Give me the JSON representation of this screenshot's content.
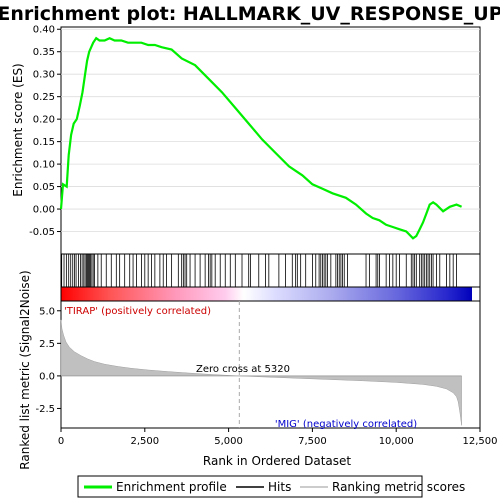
{
  "chart_data": {
    "type": "line",
    "title": "Enrichment plot: HALLMARK_UV_RESPONSE_UP",
    "top_panel": {
      "ylabel": "Enrichment score (ES)",
      "ylim": [
        -0.1,
        0.4
      ],
      "yticks": [
        "0.40",
        "0.35",
        "0.30",
        "0.25",
        "0.20",
        "0.15",
        "0.10",
        "0.05",
        "0.00",
        "-0.05"
      ],
      "ytick_values": [
        0.4,
        0.35,
        0.3,
        0.25,
        0.2,
        0.15,
        0.1,
        0.05,
        0.0,
        -0.05
      ],
      "series": [
        {
          "name": "Enrichment profile",
          "color": "#00ff00",
          "x": [
            0,
            60,
            170,
            230,
            300,
            380,
            470,
            560,
            640,
            720,
            780,
            840,
            900,
            960,
            1050,
            1150,
            1300,
            1450,
            1600,
            1800,
            2000,
            2200,
            2400,
            2600,
            2800,
            3000,
            3300,
            3600,
            4000,
            4400,
            4800,
            5200,
            5600,
            6000,
            6400,
            6800,
            7000,
            7200,
            7500,
            7800,
            8100,
            8300,
            8500,
            8800,
            9100,
            9300,
            9500,
            9700,
            9900,
            10100,
            10300,
            10500,
            10600,
            10700,
            10800,
            10900,
            11000,
            11100,
            11200,
            11400,
            11600,
            11800,
            11950
          ],
          "y": [
            0.0,
            0.055,
            0.05,
            0.12,
            0.165,
            0.19,
            0.2,
            0.23,
            0.26,
            0.3,
            0.33,
            0.35,
            0.36,
            0.37,
            0.38,
            0.375,
            0.375,
            0.38,
            0.375,
            0.375,
            0.37,
            0.37,
            0.37,
            0.365,
            0.365,
            0.36,
            0.355,
            0.335,
            0.32,
            0.29,
            0.26,
            0.225,
            0.19,
            0.155,
            0.125,
            0.095,
            0.085,
            0.075,
            0.055,
            0.045,
            0.035,
            0.03,
            0.025,
            0.01,
            -0.01,
            -0.02,
            -0.025,
            -0.035,
            -0.04,
            -0.045,
            -0.05,
            -0.065,
            -0.06,
            -0.045,
            -0.03,
            -0.01,
            0.01,
            0.015,
            0.01,
            -0.005,
            0.005,
            0.01,
            0.005
          ]
        }
      ]
    },
    "hits": [
      20,
      90,
      160,
      230,
      290,
      350,
      400,
      450,
      520,
      580,
      630,
      680,
      720,
      760,
      790,
      820,
      850,
      880,
      920,
      960,
      1000,
      1100,
      1200,
      1350,
      1500,
      1650,
      1750,
      1900,
      2050,
      2150,
      2250,
      2400,
      2500,
      2600,
      2700,
      2800,
      2950,
      3050,
      3150,
      3300,
      3500,
      3600,
      3650,
      3700,
      3750,
      3850,
      4000,
      4150,
      4300,
      4400,
      4450,
      4500,
      4600,
      4750,
      4900,
      5050,
      5200,
      5400,
      5600,
      5650,
      5900,
      6100,
      6200,
      6500,
      6700,
      6900,
      7000,
      7050,
      7150,
      7300,
      7500,
      7600,
      7700,
      7750,
      7800,
      7850,
      7900,
      7950,
      8050,
      8200,
      8250,
      8300,
      8350,
      8400,
      8450,
      8550,
      9100,
      9200,
      9400,
      9450,
      9500,
      9700,
      9800,
      9900,
      10000,
      10100,
      10300,
      10450,
      10500,
      10550,
      10600,
      10700,
      10750,
      10800,
      10850,
      10900,
      10950,
      11000,
      11050,
      11100,
      11200,
      11300,
      11500,
      11600,
      11700,
      11800
    ],
    "bottom_panel": {
      "ylabel": "Ranked list metric (Signal2Noise)",
      "ylim": [
        -4,
        6
      ],
      "yticks": [
        "5.0",
        "2.5",
        "0.0",
        "-2.5"
      ],
      "ytick_values": [
        5.0,
        2.5,
        0.0,
        -2.5
      ],
      "metric": {
        "name": "Ranking metric scores",
        "x": [
          0,
          30,
          80,
          150,
          250,
          400,
          600,
          800,
          1000,
          1300,
          1700,
          2100,
          2600,
          3200,
          3800,
          4500,
          5320,
          6000,
          7000,
          8000,
          9000,
          10000,
          10800,
          11200,
          11500,
          11700,
          11800,
          11850,
          11900,
          11950
        ],
        "y": [
          4.3,
          3.6,
          3.1,
          2.6,
          2.2,
          1.85,
          1.55,
          1.3,
          1.1,
          0.9,
          0.72,
          0.58,
          0.45,
          0.33,
          0.22,
          0.11,
          0.0,
          -0.08,
          -0.18,
          -0.28,
          -0.38,
          -0.5,
          -0.65,
          -0.8,
          -1.0,
          -1.3,
          -1.6,
          -2.0,
          -2.8,
          -3.8
        ]
      }
    },
    "xlabel": "Rank in Ordered Dataset",
    "xlim": [
      0,
      12500
    ],
    "xticks": [
      "0",
      "2,500",
      "5,000",
      "7,500",
      "10,000",
      "12,500"
    ],
    "xtick_values": [
      0,
      2500,
      5000,
      7500,
      10000,
      12500
    ],
    "zero_cross": 5320,
    "n_genes": 11950,
    "annotations": {
      "positive": "'TIRAP' (positively correlated)",
      "negative": "'MIG' (negatively correlated)",
      "zero_cross": "Zero cross at 5320"
    },
    "legend": {
      "placement": "bottom",
      "entries": [
        "Enrichment profile",
        "Hits",
        "Ranking metric scores"
      ]
    },
    "colors": {
      "profile": "#00ff00",
      "hits": "#000000",
      "metric_fill": "#c0c0c0",
      "positive": "#ff0000",
      "negative": "#0000ff",
      "positive_text": "#cc0000",
      "negative_text": "#0000cc"
    }
  }
}
